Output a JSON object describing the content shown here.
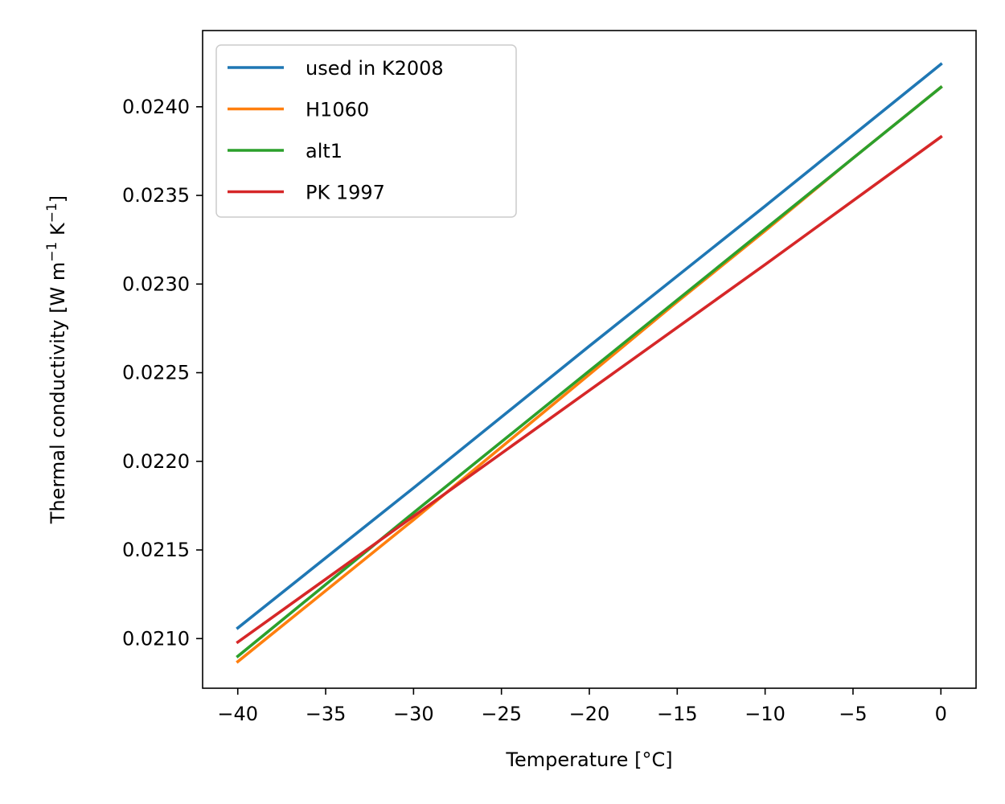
{
  "chart_data": {
    "type": "line",
    "xlabel": "Temperature [°C]",
    "ylabel": "Thermal conductivity [W m",
    "ylabel_sup1": "−1",
    "ylabel_mid": " K",
    "ylabel_sup2": "−1",
    "ylabel_end": "]",
    "xlim": [
      -42,
      2
    ],
    "ylim": [
      0.02072,
      0.02443
    ],
    "xticks": [
      -40,
      -35,
      -30,
      -25,
      -20,
      -15,
      -10,
      -5,
      0
    ],
    "xtick_labels": [
      "−40",
      "−35",
      "−30",
      "−25",
      "−20",
      "−15",
      "−10",
      "−5",
      "0"
    ],
    "yticks": [
      0.021,
      0.0215,
      0.022,
      0.0225,
      0.023,
      0.0235,
      0.024
    ],
    "ytick_labels": [
      "0.0210",
      "0.0215",
      "0.0220",
      "0.0225",
      "0.0230",
      "0.0235",
      "0.0240"
    ],
    "grid": false,
    "legend_position": "upper-left",
    "series": [
      {
        "name": "used in K2008",
        "color": "#1f77b4",
        "x": [
          -40,
          -30,
          -20,
          -10,
          0
        ],
        "y": [
          0.02106,
          0.02185,
          0.02265,
          0.02344,
          0.02424
        ]
      },
      {
        "name": "H1060",
        "color": "#ff7f0e",
        "x": [
          -40,
          -35,
          -30,
          -25,
          -20,
          -15,
          -10,
          -5,
          0
        ],
        "y": [
          0.02087,
          0.02127,
          0.02167,
          0.02208,
          0.02249,
          0.0229,
          0.0233,
          0.02371,
          0.02411
        ]
      },
      {
        "name": "alt1",
        "color": "#2ca02c",
        "x": [
          -40,
          -30,
          -20,
          -10,
          0
        ],
        "y": [
          0.0209,
          0.02171,
          0.02251,
          0.02331,
          0.02411
        ]
      },
      {
        "name": "PK 1997",
        "color": "#d62728",
        "x": [
          -40,
          -30,
          -20,
          -10,
          0
        ],
        "y": [
          0.02098,
          0.02169,
          0.0224,
          0.02311,
          0.02383
        ]
      }
    ]
  }
}
